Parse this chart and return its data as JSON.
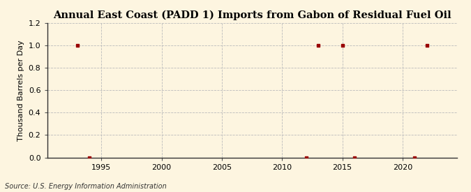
{
  "title": "Annual East Coast (PADD 1) Imports from Gabon of Residual Fuel Oil",
  "ylabel": "Thousand Barrels per Day",
  "source": "Source: U.S. Energy Information Administration",
  "x_data": [
    1993,
    1994,
    2012,
    2013,
    2015,
    2016,
    2021,
    2022
  ],
  "y_data": [
    1.0,
    0.0,
    0.0,
    1.0,
    1.0,
    0.0,
    0.0,
    1.0
  ],
  "marker_color": "#990000",
  "marker_size": 3,
  "xlim": [
    1990.5,
    2024.5
  ],
  "ylim": [
    0.0,
    1.2
  ],
  "yticks": [
    0.0,
    0.2,
    0.4,
    0.6,
    0.8,
    1.0,
    1.2
  ],
  "xticks": [
    1995,
    2000,
    2005,
    2010,
    2015,
    2020
  ],
  "bg_color": "#FDF5E0",
  "grid_color": "#BBBBBB",
  "title_fontsize": 10.5,
  "label_fontsize": 8,
  "tick_fontsize": 8,
  "source_fontsize": 7
}
